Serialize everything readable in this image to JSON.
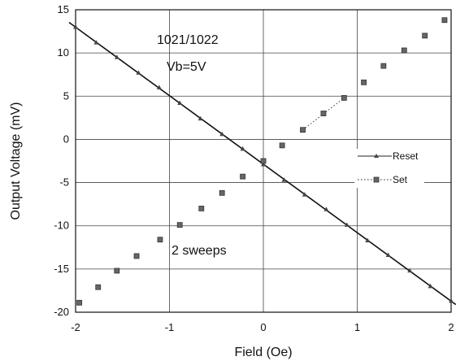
{
  "chart_data": {
    "type": "scatter",
    "xlabel": "Field (Oe)",
    "ylabel": "Output Voltage (mV)",
    "xlim": [
      -2,
      2
    ],
    "ylim": [
      -20,
      15
    ],
    "xticks": [
      -2,
      -1,
      0,
      1,
      2
    ],
    "yticks": [
      15,
      10,
      5,
      0,
      -5,
      -10,
      -15,
      -20
    ],
    "grid": true,
    "legend_position": "right",
    "annotations": [
      "1021/1022",
      "Vb=5V",
      "2 sweeps"
    ],
    "series": [
      {
        "name": "Reset",
        "marker": "triangle",
        "line": "solid",
        "color": "#222222",
        "x": [
          -2.0,
          -1.78,
          -1.56,
          -1.33,
          -1.11,
          -0.89,
          -0.67,
          -0.44,
          -0.22,
          0.0,
          0.22,
          0.44,
          0.67,
          0.89,
          1.11,
          1.33,
          1.56,
          1.78,
          2.0
        ],
        "y": [
          13.0,
          11.2,
          9.5,
          7.7,
          6.0,
          4.2,
          2.4,
          0.6,
          -1.1,
          -2.9,
          -4.7,
          -6.4,
          -8.1,
          -9.9,
          -11.7,
          -13.4,
          -15.2,
          -17.0,
          -18.7
        ]
      },
      {
        "name": "Set",
        "marker": "square",
        "line": "dotted",
        "color": "#222222",
        "x": [
          -1.96,
          -1.76,
          -1.56,
          -1.35,
          -1.1,
          -0.89,
          -0.66,
          -0.44,
          -0.22,
          0.0,
          0.2,
          0.42,
          0.64,
          0.86,
          1.07,
          1.28,
          1.5,
          1.72,
          1.93
        ],
        "y": [
          -18.9,
          -17.1,
          -15.2,
          -13.5,
          -11.6,
          -9.9,
          -8.0,
          -6.2,
          -4.3,
          -2.5,
          -0.7,
          1.1,
          3.0,
          4.8,
          6.6,
          8.5,
          10.3,
          12.0,
          13.8
        ]
      }
    ]
  }
}
